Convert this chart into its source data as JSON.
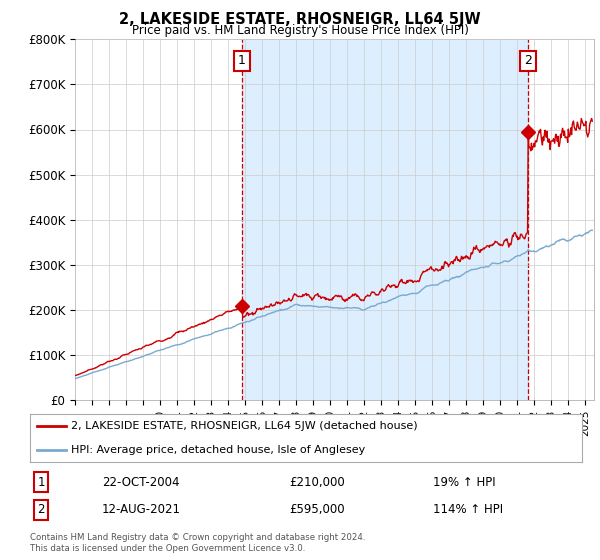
{
  "title": "2, LAKESIDE ESTATE, RHOSNEIGR, LL64 5JW",
  "subtitle": "Price paid vs. HM Land Registry's House Price Index (HPI)",
  "ylabel_ticks": [
    "£0",
    "£100K",
    "£200K",
    "£300K",
    "£400K",
    "£500K",
    "£600K",
    "£700K",
    "£800K"
  ],
  "ylim": [
    0,
    800000
  ],
  "xlim_start": 1995.0,
  "xlim_end": 2025.5,
  "sale1_x": 2004.81,
  "sale1_y": 210000,
  "sale1_label": "1",
  "sale2_x": 2021.62,
  "sale2_y": 595000,
  "sale2_label": "2",
  "red_line_color": "#cc0000",
  "blue_line_color": "#7aaad0",
  "shade_color": "#ddeeff",
  "grid_color": "#cccccc",
  "background_color": "#ffffff",
  "legend_label_red": "2, LAKESIDE ESTATE, RHOSNEIGR, LL64 5JW (detached house)",
  "legend_label_blue": "HPI: Average price, detached house, Isle of Anglesey",
  "annotation1_date": "22-OCT-2004",
  "annotation1_price": "£210,000",
  "annotation1_hpi": "19% ↑ HPI",
  "annotation2_date": "12-AUG-2021",
  "annotation2_price": "£595,000",
  "annotation2_hpi": "114% ↑ HPI",
  "footnote": "Contains HM Land Registry data © Crown copyright and database right 2024.\nThis data is licensed under the Open Government Licence v3.0."
}
